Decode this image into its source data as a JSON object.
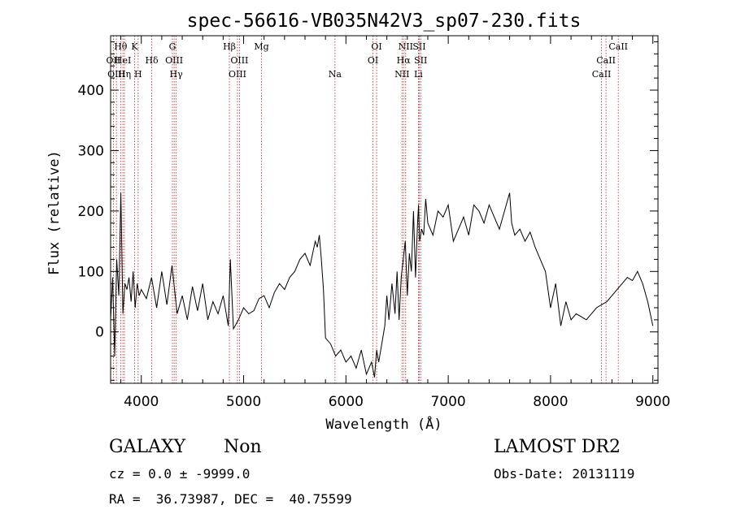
{
  "chart_data": {
    "type": "line",
    "title": "spec-56616-VB035N42V3_sp07-230.fits",
    "xlabel": "Wavelength (Å)",
    "ylabel": "Flux (relative)",
    "xlim": [
      3700,
      9050
    ],
    "ylim": [
      -85,
      490
    ],
    "x_ticks": [
      4000,
      5000,
      6000,
      7000,
      8000,
      9000
    ],
    "y_ticks": [
      0,
      100,
      200,
      300,
      400
    ],
    "grid": false,
    "line_color": "#000000",
    "marker_color": "#b22222",
    "series": [
      {
        "x": [
          3700,
          3720,
          3740,
          3760,
          3780,
          3800,
          3820,
          3840,
          3860,
          3880,
          3900,
          3920,
          3940,
          3960,
          3980,
          4000,
          4050,
          4100,
          4150,
          4200,
          4250,
          4300,
          4350,
          4400,
          4450,
          4500,
          4550,
          4600,
          4650,
          4700,
          4750,
          4800,
          4850,
          4870,
          4900,
          4950,
          5000,
          5050,
          5100,
          5150,
          5200,
          5250,
          5300,
          5350,
          5400,
          5450,
          5500,
          5550,
          5600,
          5650,
          5700,
          5720,
          5740,
          5760,
          5780,
          5800,
          5850,
          5900,
          5950,
          6000,
          6050,
          6100,
          6150,
          6200,
          6250,
          6280,
          6300,
          6320,
          6350,
          6380,
          6400,
          6420,
          6450,
          6480,
          6500,
          6520,
          6540,
          6560,
          6580,
          6600,
          6620,
          6640,
          6660,
          6680,
          6700,
          6710,
          6720,
          6740,
          6760,
          6780,
          6800,
          6850,
          6900,
          6950,
          7000,
          7050,
          7100,
          7150,
          7200,
          7250,
          7300,
          7350,
          7400,
          7450,
          7500,
          7550,
          7600,
          7620,
          7650,
          7700,
          7750,
          7800,
          7850,
          7900,
          7950,
          8000,
          8050,
          8100,
          8150,
          8200,
          8250,
          8300,
          8350,
          8400,
          8450,
          8500,
          8550,
          8600,
          8650,
          8700,
          8750,
          8800,
          8850,
          8900,
          8950,
          9000
        ],
        "y": [
          20,
          90,
          -40,
          120,
          60,
          230,
          30,
          80,
          70,
          90,
          50,
          100,
          40,
          80,
          60,
          70,
          55,
          90,
          40,
          100,
          45,
          110,
          30,
          60,
          20,
          75,
          35,
          80,
          20,
          50,
          30,
          60,
          10,
          120,
          5,
          20,
          40,
          30,
          35,
          55,
          60,
          40,
          65,
          80,
          70,
          90,
          100,
          120,
          130,
          110,
          150,
          140,
          160,
          120,
          70,
          -10,
          -20,
          -40,
          -30,
          -50,
          -40,
          -60,
          -30,
          -70,
          -50,
          -75,
          -30,
          -50,
          -20,
          10,
          60,
          20,
          80,
          30,
          100,
          20,
          90,
          120,
          150,
          60,
          130,
          100,
          200,
          90,
          180,
          210,
          150,
          170,
          160,
          220,
          180,
          160,
          200,
          190,
          210,
          150,
          170,
          190,
          160,
          210,
          200,
          180,
          210,
          190,
          170,
          200,
          230,
          180,
          160,
          170,
          150,
          165,
          140,
          120,
          100,
          40,
          80,
          10,
          50,
          20,
          30,
          25,
          20,
          30,
          40,
          45,
          50,
          60,
          70,
          80,
          90,
          85,
          100,
          80,
          50,
          10
        ]
      }
    ],
    "lines": [
      {
        "name": "Hθ",
        "x": 3798,
        "row": 1
      },
      {
        "name": "OII",
        "x": 3727,
        "row": 2
      },
      {
        "name": "OIII",
        "x": 3757,
        "row": 3
      },
      {
        "name": "HeI",
        "x": 3820,
        "row": 2
      },
      {
        "name": "Hη",
        "x": 3835,
        "row": 3
      },
      {
        "name": "K",
        "x": 3934,
        "row": 1
      },
      {
        "name": "H",
        "x": 3969,
        "row": 3
      },
      {
        "name": "Hδ",
        "x": 4102,
        "row": 2
      },
      {
        "name": "G",
        "x": 4304,
        "row": 1
      },
      {
        "name": "OIII",
        "x": 4321,
        "row": 2
      },
      {
        "name": "Hγ",
        "x": 4341,
        "row": 3
      },
      {
        "name": "Hβ",
        "x": 4861,
        "row": 1
      },
      {
        "name": "OIII",
        "x": 4959,
        "row": 2
      },
      {
        "name": "OIII",
        "x": 4940,
        "row": 3
      },
      {
        "name": "Mg",
        "x": 5175,
        "row": 1
      },
      {
        "name": "Na",
        "x": 5893,
        "row": 3
      },
      {
        "name": "OI",
        "x": 6300,
        "row": 1
      },
      {
        "name": "OI",
        "x": 6264,
        "row": 2
      },
      {
        "name": "NII",
        "x": 6584,
        "row": 1
      },
      {
        "name": "Hα",
        "x": 6563,
        "row": 2
      },
      {
        "name": "NII",
        "x": 6548,
        "row": 3
      },
      {
        "name": "SII",
        "x": 6717,
        "row": 1
      },
      {
        "name": "SII",
        "x": 6731,
        "row": 2
      },
      {
        "name": "Li",
        "x": 6708,
        "row": 3
      },
      {
        "name": "CaII",
        "x": 8662,
        "row": 1
      },
      {
        "name": "CaII",
        "x": 8542,
        "row": 2
      },
      {
        "name": "CaII",
        "x": 8498,
        "row": 3
      }
    ]
  },
  "info": {
    "object_class": "GALAXY",
    "subclass": "Non",
    "survey": "LAMOST DR2",
    "cz": "cz = 0.0 ± -9999.0",
    "obs_date": "Obs-Date: 20131119",
    "radec": "RA =  36.73987, DEC =  40.75599"
  }
}
